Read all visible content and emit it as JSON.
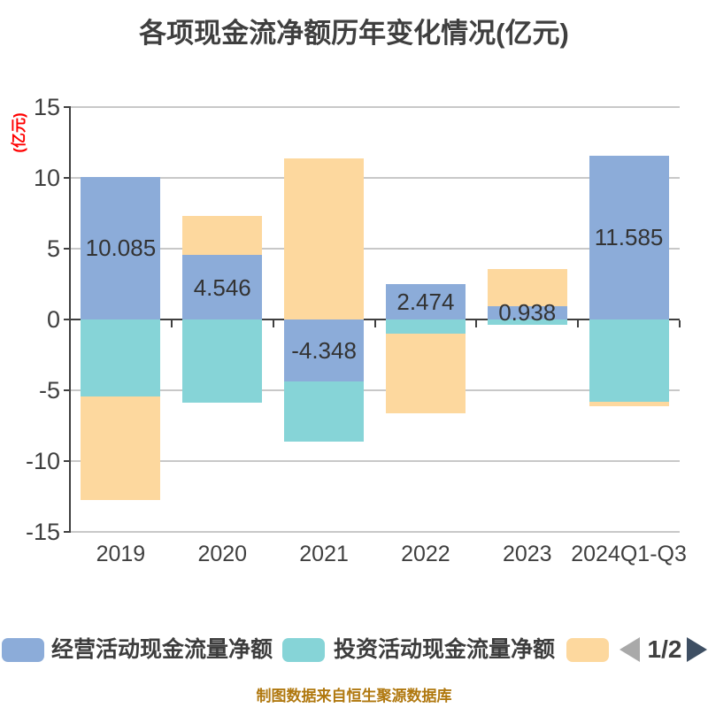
{
  "title": "各项现金流净额历年变化情况(亿元)",
  "source_note": "制图数据来自恒生聚源数据库",
  "colors": {
    "operating": "#8CACD9",
    "investing": "#86D4D7",
    "financing": "#FDD89E",
    "gridline": "#C8C8C8",
    "axis": "#3F3F3F",
    "text": "#3F3F3F",
    "bar_label": "#333333",
    "y_axis_unit": "#FF0000",
    "source_note": "#B0780F",
    "pager_prev": "#A9A9A9",
    "pager_next": "#3E4F63"
  },
  "y_axis": {
    "label": "(亿元)",
    "ticks": [
      15,
      10,
      5,
      0,
      -5,
      -10,
      -15
    ]
  },
  "chart_data": {
    "type": "bar",
    "stacked": true,
    "title": "各项现金流净额历年变化情况(亿元)",
    "ylim": [
      -15,
      15
    ],
    "ytick_step": 5,
    "grid": true,
    "legend_position": "bottom",
    "categories": [
      "2019",
      "2020",
      "2021",
      "2022",
      "2023",
      "2024Q1-Q3"
    ],
    "series": [
      {
        "name": "经营活动现金流量净额",
        "color": "#8CACD9",
        "values": [
          10.085,
          4.546,
          -4.348,
          2.474,
          0.938,
          11.585
        ]
      },
      {
        "name": "投资活动现金流量净额",
        "color": "#86D4D7",
        "estimated": true,
        "values": [
          -5.44,
          -5.89,
          -4.25,
          -1.0,
          -0.35,
          -5.8
        ]
      },
      {
        "name": "",
        "color": "#FDD89E",
        "estimated": true,
        "values": [
          -7.31,
          2.78,
          11.35,
          -5.6,
          2.63,
          -0.35
        ]
      }
    ],
    "data_labels": [
      "10.085",
      "4.546",
      "-4.348",
      "2.474",
      "0.938",
      "11.585"
    ]
  },
  "legend": {
    "items": [
      {
        "label": "经营活动现金流量净额",
        "color": "#8CACD9"
      },
      {
        "label": "投资活动现金流量净额",
        "color": "#86D4D7"
      },
      {
        "label": "",
        "color": "#FDD89E"
      }
    ],
    "pager": {
      "prev_icon": "left-triangle-icon",
      "text": "1/2",
      "next_icon": "right-triangle-icon"
    }
  }
}
